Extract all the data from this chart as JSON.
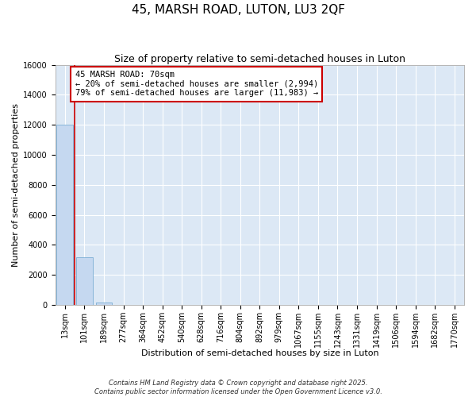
{
  "title": "45, MARSH ROAD, LUTON, LU3 2QF",
  "subtitle": "Size of property relative to semi-detached houses in Luton",
  "xlabel": "Distribution of semi-detached houses by size in Luton",
  "ylabel": "Number of semi-detached properties",
  "categories": [
    "13sqm",
    "101sqm",
    "189sqm",
    "277sqm",
    "364sqm",
    "452sqm",
    "540sqm",
    "628sqm",
    "716sqm",
    "804sqm",
    "892sqm",
    "979sqm",
    "1067sqm",
    "1155sqm",
    "1243sqm",
    "1331sqm",
    "1419sqm",
    "1506sqm",
    "1594sqm",
    "1682sqm",
    "1770sqm"
  ],
  "values": [
    12000,
    3200,
    150,
    20,
    5,
    2,
    1,
    1,
    1,
    1,
    1,
    0,
    0,
    0,
    0,
    0,
    0,
    0,
    0,
    0,
    0
  ],
  "bar_color": "#c5d8f0",
  "bar_edge_color": "#7aadd4",
  "annotation_text": "45 MARSH ROAD: 70sqm\n← 20% of semi-detached houses are smaller (2,994)\n79% of semi-detached houses are larger (11,983) →",
  "annotation_box_facecolor": "#ffffff",
  "annotation_box_edgecolor": "#cc0000",
  "red_line_x": 0.5,
  "ylim": [
    0,
    16000
  ],
  "yticks": [
    0,
    2000,
    4000,
    6000,
    8000,
    10000,
    12000,
    14000,
    16000
  ],
  "plot_bg_color": "#dce8f5",
  "fig_bg_color": "#ffffff",
  "footer": "Contains HM Land Registry data © Crown copyright and database right 2025.\nContains public sector information licensed under the Open Government Licence v3.0.",
  "title_fontsize": 11,
  "subtitle_fontsize": 9,
  "xlabel_fontsize": 8,
  "ylabel_fontsize": 8,
  "tick_fontsize": 7,
  "annotation_fontsize": 7.5,
  "footer_fontsize": 6
}
